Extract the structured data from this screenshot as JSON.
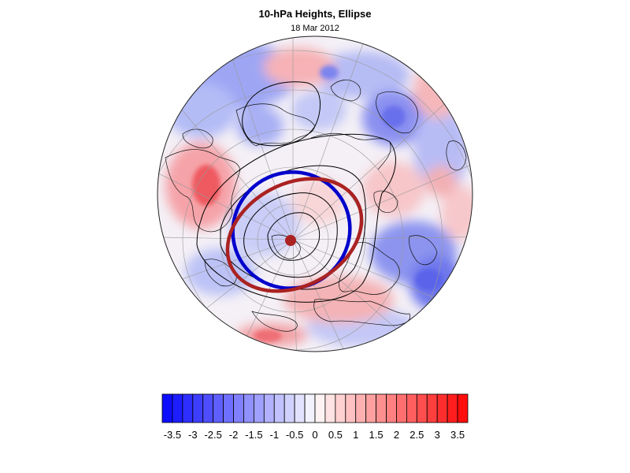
{
  "title": "10-hPa Heights, Ellipse",
  "date": "18 Mar 2012",
  "colorbar": {
    "tick_labels": [
      "-3.5",
      "-3",
      "-2.5",
      "-2",
      "-1.5",
      "-1",
      "-0.5",
      "0",
      "0.5",
      "1",
      "1.5",
      "2",
      "2.5",
      "3",
      "3.5"
    ],
    "min": -3.75,
    "max": 3.75,
    "step": 0.25,
    "negative_color": "#0000ff",
    "positive_color": "#ff0000"
  },
  "colors": {
    "blue_ellipse": "#0000cc",
    "red_ellipse": "#aa2222",
    "contour": "#000000",
    "grid": "#9a9a9a"
  }
}
